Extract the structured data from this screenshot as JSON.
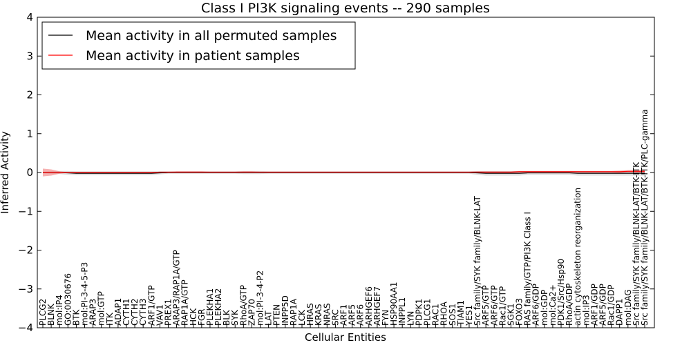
{
  "chart_data": {
    "type": "line",
    "title": "Class I PI3K signaling events -- 290 samples",
    "xlabel": "Cellular Entities",
    "ylabel": "Inferred Activity",
    "ylim": [
      -4,
      4
    ],
    "yticks": [
      -4,
      -3,
      -2,
      -1,
      0,
      1,
      2,
      3,
      4
    ],
    "legend_placement": "top-left",
    "categories": [
      "PLCG2",
      "BLNK",
      "mol:IP4",
      "GO:0030676",
      "BTK",
      "mol:PI-3-4-5-P3",
      "ARAP3",
      "mol:GTP",
      "ITK",
      "ADAP1",
      "CYTH1",
      "CYTH2",
      "CYTH3",
      "ARF1/GTP",
      "VAV1",
      "PREX1",
      "ARAP3/RAP1A/GTP",
      "RAP1A/GTP",
      "HCK",
      "FGR",
      "PLEKHA1",
      "PLEKHA2",
      "BLK",
      "SYK",
      "RhoA/GTP",
      "ZAP70",
      "mol:PI-3-4-P2",
      "LAT",
      "PTEN",
      "INPP5D",
      "RAP1A",
      "LCK",
      "HRAS",
      "KRAS",
      "NRAS",
      "SRC",
      "ARF1",
      "ARF5",
      "ARF6",
      "ARHGEF6",
      "ARHGEF7",
      "FYN",
      "HSP90AA1",
      "INPPL1",
      "LYN",
      "PDPK1",
      "PLCG1",
      "RAC1",
      "RHOA",
      "SOS1",
      "TIAM1",
      "YES1",
      "Src family/SYK family/BLNK-LAT",
      "ARF5/GTP",
      "ARF6/GTP",
      "Rac1/GTP",
      "SGK1",
      "FOXO3",
      "RAS family/GTP/PI3K Class I",
      "ARF6/GDP",
      "mol:GDP",
      "mol:Ca2+",
      "PDK1/Src/Hsp90",
      "RhoA/GDP",
      "actin cytoskeleton reorganization",
      "mol:IP3",
      "ARF1/GDP",
      "ARF5/GDP",
      "Rac1/GDP",
      "DAPP1",
      "mol:DAG",
      "Src family/SYK family/BLNK-LAT/BTK-ITK",
      "Src family/SYK family/BLNK-LAT/BTK-ITK/PLC-gamma"
    ],
    "series": [
      {
        "name": "Mean activity in all permuted samples",
        "color": "#000000",
        "band_color": "#bbbbbb",
        "values": [
          0,
          0,
          0,
          -0.01,
          -0.02,
          -0.02,
          -0.02,
          -0.02,
          -0.02,
          -0.02,
          -0.02,
          -0.02,
          -0.02,
          -0.02,
          -0.01,
          0,
          0,
          0,
          0,
          0,
          0,
          0,
          0,
          0,
          0,
          0,
          0,
          0,
          0,
          0,
          0,
          0,
          0,
          0,
          0,
          0,
          0,
          0,
          0,
          0,
          0,
          0,
          0,
          0,
          0,
          0,
          0,
          0,
          0,
          0,
          0,
          0,
          -0.01,
          -0.02,
          -0.02,
          -0.02,
          -0.02,
          -0.02,
          -0.01,
          -0.01,
          -0.01,
          -0.01,
          -0.01,
          -0.01,
          -0.02,
          -0.02,
          -0.02,
          -0.02,
          -0.02,
          -0.02,
          -0.02,
          -0.02,
          -0.02
        ],
        "band": [
          0.02,
          0.03,
          0.04,
          0.05,
          0.05,
          0.05,
          0.05,
          0.05,
          0.05,
          0.05,
          0.05,
          0.05,
          0.05,
          0.05,
          0.04,
          0.03,
          0.03,
          0.03,
          0.03,
          0.03,
          0.03,
          0.03,
          0.03,
          0.03,
          0.04,
          0.04,
          0.04,
          0.03,
          0.03,
          0.03,
          0.03,
          0.03,
          0.03,
          0.03,
          0.03,
          0.03,
          0.03,
          0.03,
          0.03,
          0.03,
          0.03,
          0.03,
          0.03,
          0.03,
          0.03,
          0.03,
          0.03,
          0.03,
          0.03,
          0.03,
          0.03,
          0.03,
          0.05,
          0.06,
          0.06,
          0.06,
          0.06,
          0.06,
          0.05,
          0.05,
          0.05,
          0.05,
          0.05,
          0.05,
          0.06,
          0.06,
          0.06,
          0.06,
          0.06,
          0.06,
          0.06,
          0.06,
          0.06
        ]
      },
      {
        "name": "Mean activity in patient samples",
        "color": "#ff0000",
        "band_color": "#ee6666",
        "values": [
          0,
          0,
          0,
          0,
          0,
          0,
          0,
          0,
          0,
          0,
          0,
          0,
          0,
          0,
          0.01,
          0.01,
          0.01,
          0.01,
          0.01,
          0.01,
          0.01,
          0.01,
          0.01,
          0.01,
          0.01,
          0.01,
          0.01,
          0.01,
          0.01,
          0.01,
          0.01,
          0.01,
          0.01,
          0.01,
          0.01,
          0.01,
          0.01,
          0.01,
          0.01,
          0.01,
          0.01,
          0.01,
          0.01,
          0.01,
          0.01,
          0.01,
          0.01,
          0.01,
          0.01,
          0.01,
          0.01,
          0.01,
          0.01,
          0.01,
          0.01,
          0.01,
          0.01,
          0.02,
          0.02,
          0.02,
          0.02,
          0.02,
          0.02,
          0.02,
          0.02,
          0.02,
          0.02,
          0.02,
          0.02,
          0.02,
          0.03,
          0.03,
          0.03
        ],
        "band": [
          0.1,
          0.08,
          0.03,
          0.01,
          0.01,
          0.01,
          0.01,
          0.01,
          0.01,
          0.01,
          0.01,
          0.01,
          0.01,
          0.01,
          0.01,
          0.01,
          0.02,
          0.02,
          0.02,
          0.02,
          0.01,
          0.01,
          0.01,
          0.01,
          0.02,
          0.02,
          0.01,
          0.01,
          0.01,
          0.01,
          0.01,
          0.01,
          0.01,
          0.01,
          0.01,
          0.01,
          0.01,
          0.01,
          0.01,
          0.01,
          0.01,
          0.01,
          0.01,
          0.01,
          0.01,
          0.01,
          0.01,
          0.01,
          0.01,
          0.01,
          0.01,
          0.01,
          0.02,
          0.02,
          0.02,
          0.02,
          0.02,
          0.02,
          0.02,
          0.02,
          0.02,
          0.02,
          0.02,
          0.02,
          0.02,
          0.02,
          0.02,
          0.02,
          0.02,
          0.03,
          0.03,
          0.04,
          0.04
        ]
      }
    ]
  }
}
